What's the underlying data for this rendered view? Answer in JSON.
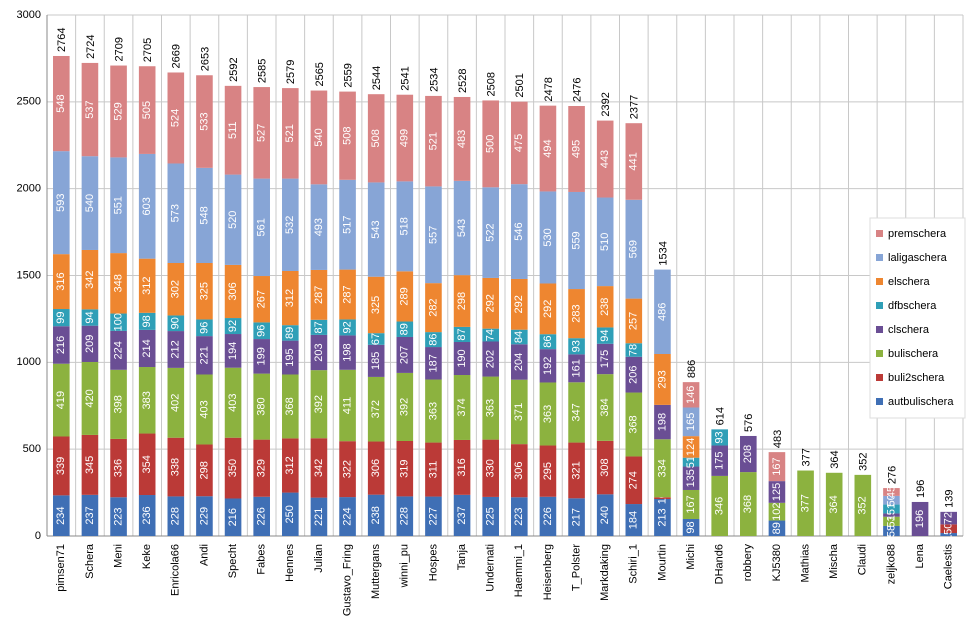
{
  "chart_data": {
    "type": "stacked_bar",
    "categories": [
      "pimsen71",
      "Schera",
      "Meni",
      "Keke",
      "Enricola66",
      "Andi",
      "Specht",
      "Fabes",
      "Hennes",
      "Julian",
      "Gustavo_Fring",
      "Muttergans",
      "winni_pu",
      "Hospes",
      "Tanja",
      "Undernati",
      "Haemmi_1",
      "Heisenberg",
      "T_Polster",
      "Markdaking",
      "Schiri_1",
      "Mourtin",
      "Michi",
      "DHand6",
      "robbery",
      "KJ5380",
      "Mathias",
      "Mischa",
      "Claudi",
      "zeljko88",
      "Lena",
      "Caelestis"
    ],
    "series": [
      {
        "name": "autbulischera",
        "color": "#3f6fb5",
        "values": [
          234,
          237,
          223,
          236,
          228,
          229,
          216,
          226,
          250,
          221,
          224,
          238,
          228,
          227,
          237,
          225,
          223,
          226,
          217,
          240,
          184,
          213,
          98,
          0,
          0,
          89,
          0,
          0,
          0,
          58,
          0,
          17
        ]
      },
      {
        "name": "buli2schera",
        "color": "#bb3a37",
        "values": [
          339,
          345,
          336,
          354,
          338,
          298,
          350,
          329,
          312,
          342,
          322,
          306,
          319,
          311,
          316,
          330,
          306,
          295,
          321,
          308,
          274,
          10,
          0,
          0,
          0,
          0,
          0,
          0,
          0,
          0,
          0,
          50
        ]
      },
      {
        "name": "bulischera",
        "color": "#8cb23f",
        "values": [
          419,
          420,
          398,
          383,
          402,
          403,
          403,
          380,
          368,
          392,
          411,
          372,
          392,
          363,
          374,
          363,
          371,
          363,
          347,
          384,
          368,
          334,
          167,
          346,
          368,
          102,
          377,
          364,
          352,
          53,
          0,
          0
        ]
      },
      {
        "name": "clschera",
        "color": "#6a4e94",
        "values": [
          216,
          209,
          224,
          214,
          212,
          221,
          194,
          199,
          195,
          203,
          198,
          185,
          207,
          187,
          190,
          202,
          204,
          192,
          161,
          175,
          206,
          198,
          135,
          175,
          208,
          125,
          0,
          0,
          0,
          19,
          196,
          72
        ]
      },
      {
        "name": "dfbschera",
        "color": "#2f9fb7",
        "values": [
          99,
          94,
          100,
          98,
          90,
          96,
          92,
          96,
          89,
          87,
          92,
          67,
          89,
          86,
          87,
          74,
          84,
          86,
          93,
          94,
          78,
          0,
          51,
          93,
          0,
          0,
          0,
          0,
          0,
          51,
          0,
          0
        ]
      },
      {
        "name": "elschera",
        "color": "#ee8630",
        "values": [
          316,
          342,
          348,
          312,
          302,
          325,
          306,
          267,
          312,
          287,
          287,
          325,
          289,
          282,
          298,
          292,
          292,
          292,
          283,
          238,
          257,
          293,
          124,
          0,
          0,
          0,
          0,
          0,
          0,
          0,
          0,
          0
        ]
      },
      {
        "name": "laligaschera",
        "color": "#87a5d6",
        "values": [
          593,
          540,
          551,
          603,
          573,
          548,
          520,
          561,
          532,
          493,
          517,
          543,
          518,
          557,
          543,
          522,
          546,
          530,
          559,
          510,
          569,
          486,
          165,
          0,
          0,
          0,
          0,
          0,
          0,
          50,
          0,
          0
        ]
      },
      {
        "name": "premschera",
        "color": "#d88384",
        "values": [
          548,
          537,
          529,
          505,
          524,
          533,
          511,
          527,
          521,
          540,
          508,
          508,
          499,
          521,
          483,
          500,
          475,
          494,
          495,
          443,
          441,
          0,
          146,
          0,
          0,
          167,
          0,
          0,
          0,
          45,
          0,
          0
        ]
      }
    ],
    "totals": [
      2764,
      2724,
      2709,
      2705,
      2669,
      2653,
      2592,
      2585,
      2579,
      2565,
      2559,
      2544,
      2541,
      2534,
      2528,
      2508,
      2501,
      2478,
      2476,
      2392,
      2377,
      1534,
      886,
      614,
      576,
      483,
      377,
      364,
      352,
      276,
      196,
      139
    ],
    "ylim": [
      0,
      3000
    ],
    "yticks": [
      0,
      500,
      1000,
      1500,
      2000,
      2500,
      3000
    ],
    "grid": true,
    "legend": "right"
  }
}
